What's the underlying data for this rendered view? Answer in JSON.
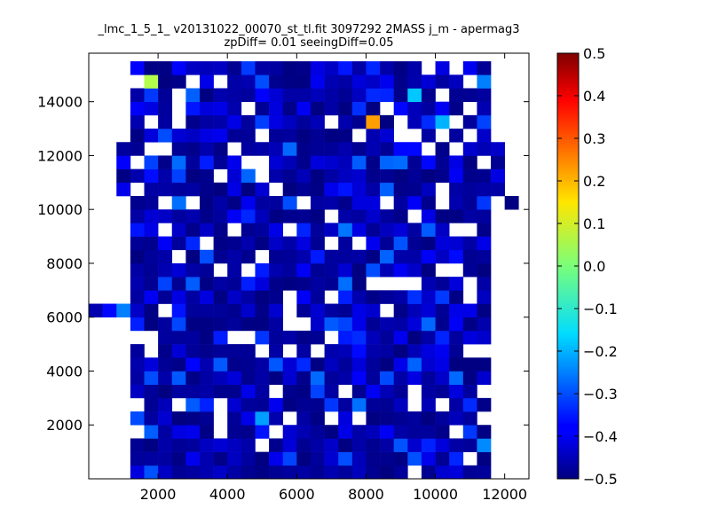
{
  "chart_data": {
    "type": "heatmap",
    "title_line1": "_lmc_1_5_1_ v20131022_00070_st_tl.fit 3097292 2MASS j_m - apermag3",
    "title_line2": "zpDiff= 0.01 seeingDiff=0.05",
    "xlim": [
      0,
      12700
    ],
    "ylim": [
      0,
      15800
    ],
    "bin_size": [
      400,
      500
    ],
    "x_ticks": [
      2000,
      4000,
      6000,
      8000,
      10000,
      12000
    ],
    "x_tick_labels": [
      "2000",
      "4000",
      "6000",
      "8000",
      "10000",
      "12000"
    ],
    "y_ticks": [
      2000,
      4000,
      6000,
      8000,
      10000,
      12000,
      14000
    ],
    "y_tick_labels": [
      "2000",
      "4000",
      "6000",
      "8000",
      "10000",
      "12000",
      "14000"
    ],
    "colorbar": {
      "range": [
        -0.5,
        0.5
      ],
      "ticks": [
        0.5,
        0.4,
        0.3,
        0.2,
        0.1,
        0.0,
        -0.1,
        -0.2,
        -0.3,
        -0.4,
        -0.5
      ],
      "tick_labels": [
        "0.5",
        "0.4",
        "0.3",
        "0.2",
        "0.1",
        "0.0",
        "−0.1",
        "−0.2",
        "−0.3",
        "−0.4",
        "−0.5"
      ],
      "colormap": "jet"
    },
    "notable_cells": [
      {
        "x": 1800,
        "y": 14750,
        "value": 0.05
      },
      {
        "x": 8200,
        "y": 13250,
        "value": 0.22
      },
      {
        "x": 9500,
        "y": 14250,
        "value": -0.18
      },
      {
        "x": 10300,
        "y": 13250,
        "value": -0.2
      },
      {
        "x": 5100,
        "y": 2250,
        "value": -0.22
      },
      {
        "x": 11300,
        "y": 1250,
        "value": -0.24
      },
      {
        "x": 11300,
        "y": 14750,
        "value": -0.25
      },
      {
        "x": 1000,
        "y": 6250,
        "value": -0.25
      }
    ],
    "seed": 12345
  }
}
